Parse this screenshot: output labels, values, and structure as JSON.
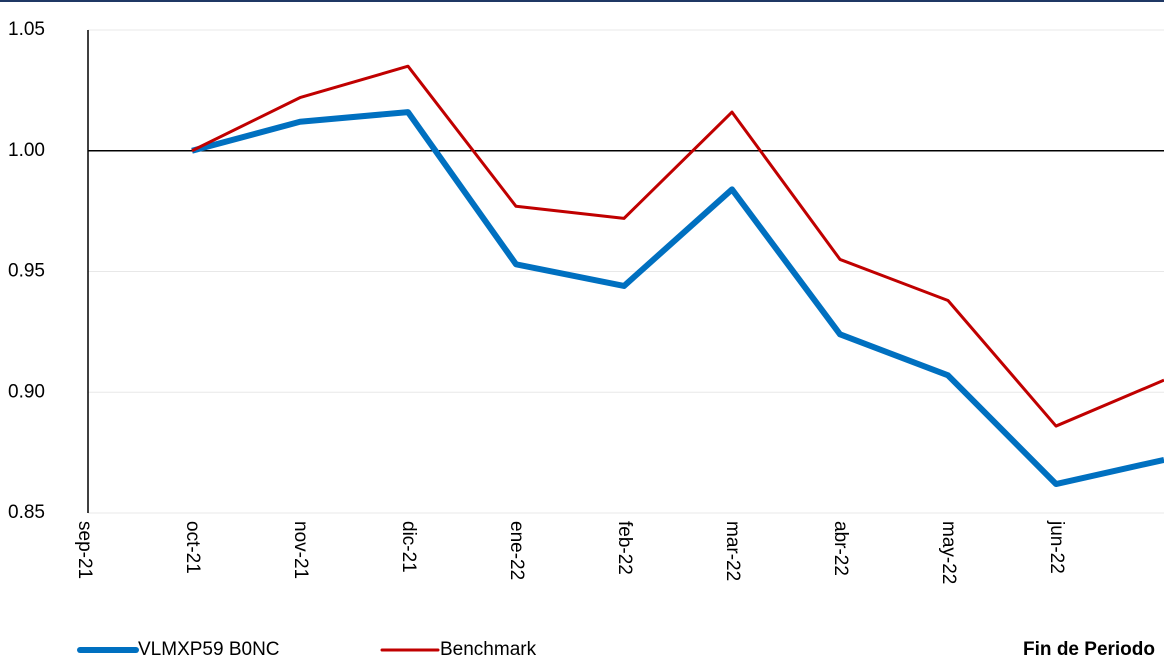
{
  "chart_data": {
    "type": "line",
    "categories": [
      "sep-21",
      "oct-21",
      "nov-21",
      "dic-21",
      "ene-22",
      "feb-22",
      "mar-22",
      "abr-22",
      "may-22",
      "jun-22",
      null
    ],
    "series": [
      {
        "name": "VLMXP59 B0NC",
        "color": "#0070c0",
        "width": 6,
        "values": [
          null,
          1.0,
          1.012,
          1.016,
          0.953,
          0.944,
          0.984,
          0.924,
          0.907,
          0.862,
          0.872
        ]
      },
      {
        "name": "Benchmark",
        "color": "#c00000",
        "width": 3,
        "values": [
          null,
          1.0,
          1.022,
          1.035,
          0.977,
          0.972,
          1.016,
          0.955,
          0.938,
          0.886,
          0.905
        ]
      }
    ],
    "ylim": [
      0.85,
      1.05
    ],
    "yticks": [
      0.85,
      {
        "value": 0.9,
        "label": "0.90"
      },
      0.95,
      {
        "value": 1.0,
        "label": "1.00"
      },
      1.05
    ],
    "x_axis_crosses": 1.0,
    "x_label": "Fin de Periodo",
    "grid": true,
    "legend": "bottom"
  }
}
